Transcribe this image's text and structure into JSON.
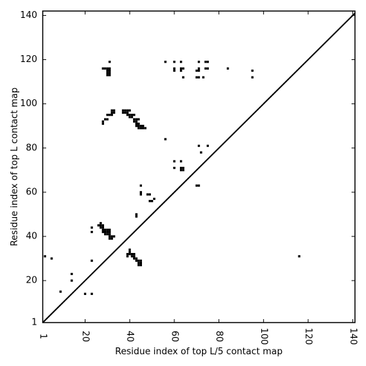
{
  "chart_data": {
    "type": "scatter",
    "xlabel": "Residue index of top L/5 contact map",
    "ylabel": "Residue index of top L contact map",
    "xlim": [
      1,
      141
    ],
    "ylim": [
      1,
      142
    ],
    "x_ticks": [
      1,
      20,
      40,
      60,
      80,
      100,
      120,
      140
    ],
    "y_ticks": [
      1,
      20,
      40,
      60,
      80,
      100,
      120,
      140
    ],
    "diagonal": true,
    "grid": false,
    "marker_color": "#000000",
    "points": [
      [
        2,
        31
      ],
      [
        5,
        30
      ],
      [
        9,
        15
      ],
      [
        14,
        20
      ],
      [
        14,
        23
      ],
      [
        20,
        14
      ],
      [
        23,
        14
      ],
      [
        23,
        29
      ],
      [
        23,
        42
      ],
      [
        23,
        44
      ],
      [
        27,
        44
      ],
      [
        27,
        45
      ],
      [
        28,
        44
      ],
      [
        28,
        45
      ],
      [
        26,
        45
      ],
      [
        27,
        46
      ],
      [
        28,
        43
      ],
      [
        28,
        42
      ],
      [
        29,
        42
      ],
      [
        29,
        43
      ],
      [
        29,
        41
      ],
      [
        30,
        41
      ],
      [
        30,
        42
      ],
      [
        30,
        43
      ],
      [
        31,
        41
      ],
      [
        31,
        42
      ],
      [
        31,
        43
      ],
      [
        31,
        40
      ],
      [
        31,
        39
      ],
      [
        32,
        39
      ],
      [
        32,
        40
      ],
      [
        33,
        40
      ],
      [
        28,
        116
      ],
      [
        29,
        116
      ],
      [
        30,
        116
      ],
      [
        30,
        115
      ],
      [
        31,
        115
      ],
      [
        31,
        116
      ],
      [
        30,
        114
      ],
      [
        31,
        114
      ],
      [
        30,
        113
      ],
      [
        31,
        113
      ],
      [
        31,
        119
      ],
      [
        29,
        93
      ],
      [
        30,
        93
      ],
      [
        28,
        92
      ],
      [
        28,
        91
      ],
      [
        30,
        95
      ],
      [
        31,
        95
      ],
      [
        32,
        95
      ],
      [
        32,
        96
      ],
      [
        32,
        97
      ],
      [
        33,
        96
      ],
      [
        33,
        97
      ],
      [
        37,
        96
      ],
      [
        37,
        97
      ],
      [
        38,
        96
      ],
      [
        38,
        97
      ],
      [
        39,
        96
      ],
      [
        39,
        97
      ],
      [
        40,
        97
      ],
      [
        39,
        95
      ],
      [
        40,
        95
      ],
      [
        40,
        94
      ],
      [
        41,
        94
      ],
      [
        41,
        95
      ],
      [
        42,
        95
      ],
      [
        42,
        93
      ],
      [
        42,
        92
      ],
      [
        43,
        93
      ],
      [
        43,
        92
      ],
      [
        44,
        93
      ],
      [
        43,
        91
      ],
      [
        44,
        91
      ],
      [
        43,
        90
      ],
      [
        44,
        90
      ],
      [
        45,
        90
      ],
      [
        46,
        90
      ],
      [
        45,
        89
      ],
      [
        44,
        89
      ],
      [
        46,
        89
      ],
      [
        47,
        89
      ],
      [
        39,
        32
      ],
      [
        40,
        32
      ],
      [
        40,
        33
      ],
      [
        40,
        34
      ],
      [
        39,
        31
      ],
      [
        41,
        31
      ],
      [
        41,
        32
      ],
      [
        42,
        31
      ],
      [
        42,
        32
      ],
      [
        42,
        30
      ],
      [
        43,
        30
      ],
      [
        43,
        29
      ],
      [
        44,
        29
      ],
      [
        44,
        28
      ],
      [
        45,
        28
      ],
      [
        45,
        29
      ],
      [
        45,
        27
      ],
      [
        44,
        27
      ],
      [
        43,
        49
      ],
      [
        43,
        50
      ],
      [
        45,
        60
      ],
      [
        45,
        59
      ],
      [
        45,
        63
      ],
      [
        48,
        59
      ],
      [
        49,
        59
      ],
      [
        49,
        56
      ],
      [
        50,
        56
      ],
      [
        51,
        57
      ],
      [
        56,
        84
      ],
      [
        56,
        119
      ],
      [
        60,
        119
      ],
      [
        60,
        116
      ],
      [
        60,
        115
      ],
      [
        63,
        119
      ],
      [
        63,
        116
      ],
      [
        63,
        115
      ],
      [
        64,
        116
      ],
      [
        64,
        112
      ],
      [
        60,
        71
      ],
      [
        60,
        74
      ],
      [
        63,
        74
      ],
      [
        63,
        71
      ],
      [
        63,
        70
      ],
      [
        64,
        71
      ],
      [
        64,
        70
      ],
      [
        70,
        63
      ],
      [
        71,
        63
      ],
      [
        70,
        112
      ],
      [
        71,
        112
      ],
      [
        73,
        112
      ],
      [
        70,
        115
      ],
      [
        71,
        115
      ],
      [
        71,
        116
      ],
      [
        71,
        119
      ],
      [
        74,
        119
      ],
      [
        75,
        119
      ],
      [
        74,
        116
      ],
      [
        75,
        116
      ],
      [
        71,
        81
      ],
      [
        72,
        78
      ],
      [
        75,
        81
      ],
      [
        84,
        116
      ],
      [
        95,
        115
      ],
      [
        95,
        112
      ],
      [
        116,
        31
      ]
    ]
  }
}
